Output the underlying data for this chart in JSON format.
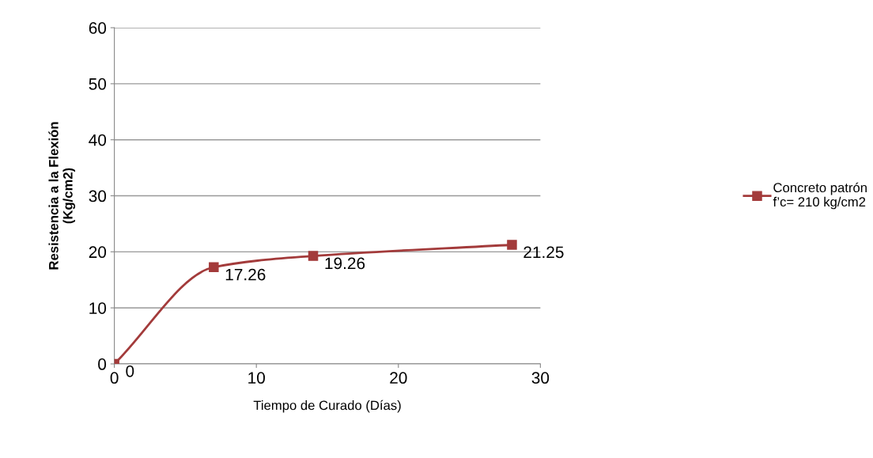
{
  "chart_data": {
    "type": "line",
    "xlabel": "Tiempo de Curado (Días)",
    "ylabel": "Resistencia a la Flexión\n(Kg/cm2)",
    "x": [
      0,
      7,
      14,
      28
    ],
    "series": [
      {
        "name": "Concreto patrón\nf’c= 210 kg/cm2",
        "color": "#a33b3b",
        "values": [
          0,
          17.26,
          19.26,
          21.25
        ]
      }
    ],
    "data_labels": true,
    "xlim": [
      0,
      30
    ],
    "xticks": [
      0,
      10,
      20,
      30
    ],
    "ylim": [
      0,
      60
    ],
    "yticks": [
      0,
      10,
      20,
      30,
      40,
      50,
      60
    ],
    "grid": "y",
    "legend": "right",
    "marker": "square",
    "line_style": "solid"
  }
}
